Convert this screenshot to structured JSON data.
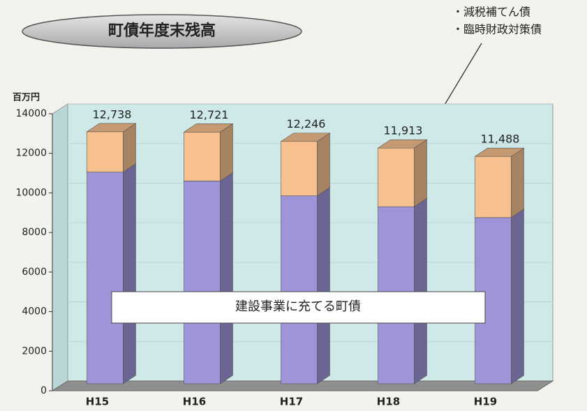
{
  "chart_data": {
    "type": "bar3d_stacked",
    "title": "町債年度末残高",
    "y_unit": "百万円",
    "categories": [
      "H15",
      "H16",
      "H17",
      "H18",
      "H19"
    ],
    "series": [
      {
        "name": "建設事業に充てる町債",
        "color": "#9e94d8",
        "values": [
          10700,
          10250,
          9500,
          8950,
          8400
        ]
      },
      {
        "color": "#f6c08f",
        "values": [
          2038,
          2471,
          2746,
          2963,
          3088
        ]
      }
    ],
    "callout": [
      "・減税補てん債",
      "・臨時財政対策債"
    ],
    "totals": [
      12738,
      12721,
      12246,
      11913,
      11488
    ],
    "total_labels": [
      "12,738",
      "12,721",
      "12,246",
      "11,913",
      "11,488"
    ],
    "ylim": [
      0,
      14000
    ],
    "yticks": [
      0,
      2000,
      4000,
      6000,
      8000,
      10000,
      12000,
      14000
    ]
  }
}
